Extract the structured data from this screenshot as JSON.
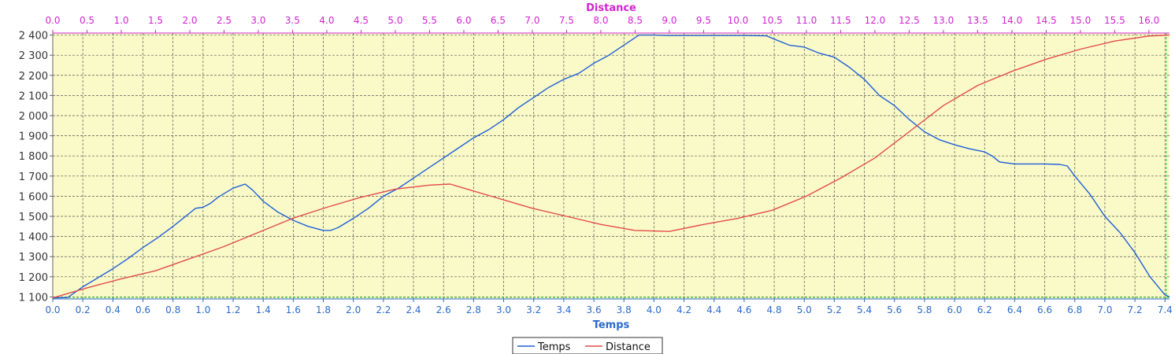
{
  "chart_data": {
    "type": "line",
    "title": "",
    "xlabel": "Temps",
    "x2label": "Distance",
    "ylabel": "",
    "xlim": [
      0,
      7.43
    ],
    "x2lim": [
      0,
      16.3
    ],
    "ylim": [
      1090,
      2410
    ],
    "x_ticks": [
      "0.0",
      "0.2",
      "0.4",
      "0.6",
      "0.8",
      "1.0",
      "1.2",
      "1.4",
      "1.6",
      "1.8",
      "2.0",
      "2.2",
      "2.4",
      "2.6",
      "2.8",
      "3.0",
      "3.2",
      "3.4",
      "3.6",
      "3.8",
      "4.0",
      "4.2",
      "4.4",
      "4.6",
      "4.8",
      "5.0",
      "5.2",
      "5.4",
      "5.6",
      "5.8",
      "6.0",
      "6.2",
      "6.4",
      "6.6",
      "6.8",
      "7.0",
      "7.2",
      "7.4"
    ],
    "x2_ticks": [
      "0.0",
      "0.5",
      "1.0",
      "1.5",
      "2.0",
      "2.5",
      "3.0",
      "3.5",
      "4.0",
      "4.5",
      "5.0",
      "5.5",
      "6.0",
      "6.5",
      "7.0",
      "7.5",
      "8.0",
      "8.5",
      "9.0",
      "9.5",
      "10.0",
      "10.5",
      "11.0",
      "11.5",
      "12.0",
      "12.5",
      "13.0",
      "13.5",
      "14.0",
      "14.5",
      "15.0",
      "15.5",
      "16.0"
    ],
    "y_ticks": [
      "1 100",
      "1 200",
      "1 300",
      "1 400",
      "1 500",
      "1 600",
      "1 700",
      "1 800",
      "1 900",
      "2 000",
      "2 100",
      "2 200",
      "2 300",
      "2 400"
    ],
    "grid": true,
    "legend": "bottom",
    "plot_background": "#fafac8",
    "series": [
      {
        "name": "Temps",
        "axis": "x",
        "color": "#1f5fd8",
        "points": [
          [
            0,
            1095
          ],
          [
            0.1,
            1097
          ],
          [
            0.2,
            1150
          ],
          [
            0.3,
            1195
          ],
          [
            0.4,
            1240
          ],
          [
            0.5,
            1290
          ],
          [
            0.6,
            1345
          ],
          [
            0.7,
            1395
          ],
          [
            0.8,
            1450
          ],
          [
            0.9,
            1510
          ],
          [
            0.95,
            1540
          ],
          [
            1.0,
            1545
          ],
          [
            1.05,
            1565
          ],
          [
            1.1,
            1595
          ],
          [
            1.2,
            1640
          ],
          [
            1.28,
            1660
          ],
          [
            1.33,
            1630
          ],
          [
            1.4,
            1575
          ],
          [
            1.5,
            1520
          ],
          [
            1.6,
            1480
          ],
          [
            1.65,
            1465
          ],
          [
            1.7,
            1450
          ],
          [
            1.8,
            1430
          ],
          [
            1.85,
            1430
          ],
          [
            1.9,
            1445
          ],
          [
            2.0,
            1490
          ],
          [
            2.1,
            1540
          ],
          [
            2.2,
            1600
          ],
          [
            2.3,
            1640
          ],
          [
            2.4,
            1690
          ],
          [
            2.5,
            1740
          ],
          [
            2.6,
            1790
          ],
          [
            2.7,
            1840
          ],
          [
            2.8,
            1890
          ],
          [
            2.9,
            1930
          ],
          [
            3.0,
            1980
          ],
          [
            3.1,
            2040
          ],
          [
            3.2,
            2090
          ],
          [
            3.3,
            2140
          ],
          [
            3.4,
            2180
          ],
          [
            3.5,
            2210
          ],
          [
            3.6,
            2260
          ],
          [
            3.7,
            2300
          ],
          [
            3.8,
            2350
          ],
          [
            3.9,
            2400
          ],
          [
            4.0,
            2400
          ],
          [
            4.1,
            2398
          ],
          [
            4.2,
            2398
          ],
          [
            4.4,
            2398
          ],
          [
            4.6,
            2398
          ],
          [
            4.75,
            2396
          ],
          [
            4.8,
            2380
          ],
          [
            4.9,
            2350
          ],
          [
            5.0,
            2340
          ],
          [
            5.1,
            2310
          ],
          [
            5.2,
            2290
          ],
          [
            5.3,
            2240
          ],
          [
            5.4,
            2180
          ],
          [
            5.5,
            2100
          ],
          [
            5.6,
            2050
          ],
          [
            5.7,
            1980
          ],
          [
            5.8,
            1920
          ],
          [
            5.9,
            1880
          ],
          [
            6.0,
            1855
          ],
          [
            6.1,
            1835
          ],
          [
            6.2,
            1820
          ],
          [
            6.25,
            1800
          ],
          [
            6.3,
            1770
          ],
          [
            6.4,
            1760
          ],
          [
            6.6,
            1760
          ],
          [
            6.7,
            1758
          ],
          [
            6.75,
            1750
          ],
          [
            6.8,
            1700
          ],
          [
            6.9,
            1610
          ],
          [
            7.0,
            1500
          ],
          [
            7.1,
            1420
          ],
          [
            7.2,
            1320
          ],
          [
            7.3,
            1200
          ],
          [
            7.4,
            1110
          ],
          [
            7.43,
            1100
          ]
        ]
      },
      {
        "name": "Distance",
        "axis": "x2",
        "color": "#e34b4b",
        "points": [
          [
            0,
            1095
          ],
          [
            0.5,
            1145
          ],
          [
            1.0,
            1190
          ],
          [
            1.5,
            1230
          ],
          [
            2.0,
            1290
          ],
          [
            2.5,
            1350
          ],
          [
            3.0,
            1420
          ],
          [
            3.5,
            1490
          ],
          [
            4.0,
            1545
          ],
          [
            4.5,
            1595
          ],
          [
            5.0,
            1635
          ],
          [
            5.5,
            1655
          ],
          [
            5.8,
            1660
          ],
          [
            6.0,
            1640
          ],
          [
            6.5,
            1590
          ],
          [
            7.0,
            1540
          ],
          [
            7.5,
            1500
          ],
          [
            8.0,
            1460
          ],
          [
            8.5,
            1430
          ],
          [
            9.0,
            1425
          ],
          [
            9.5,
            1460
          ],
          [
            10.0,
            1490
          ],
          [
            10.5,
            1530
          ],
          [
            11.0,
            1600
          ],
          [
            11.5,
            1690
          ],
          [
            12.0,
            1790
          ],
          [
            12.5,
            1920
          ],
          [
            13.0,
            2050
          ],
          [
            13.5,
            2150
          ],
          [
            14.0,
            2220
          ],
          [
            14.5,
            2280
          ],
          [
            15.0,
            2330
          ],
          [
            15.5,
            2370
          ],
          [
            16.0,
            2395
          ],
          [
            16.3,
            2400
          ]
        ]
      }
    ]
  }
}
